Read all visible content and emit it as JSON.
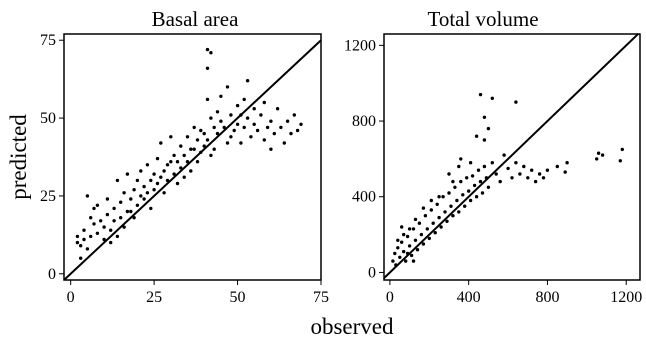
{
  "chart_data": [
    {
      "type": "scatter",
      "title": "Basal area",
      "xlim": [
        -2,
        75
      ],
      "ylim": [
        -2,
        77
      ],
      "x_ticks": [
        0,
        25,
        50,
        75
      ],
      "y_ticks": [
        0,
        25,
        50,
        75
      ],
      "x_tick_labels": [
        "0",
        "25",
        "50",
        "75"
      ],
      "y_tick_labels": [
        "0",
        "25",
        "50",
        "75"
      ],
      "reference_line": "1:1",
      "series": [
        {
          "points": [
            [
              2,
              12
            ],
            [
              2,
              10
            ],
            [
              3,
              9
            ],
            [
              3,
              5
            ],
            [
              4,
              11
            ],
            [
              4,
              14
            ],
            [
              5,
              8
            ],
            [
              5,
              25
            ],
            [
              6,
              12
            ],
            [
              6,
              18
            ],
            [
              7,
              16
            ],
            [
              7,
              21
            ],
            [
              8,
              13
            ],
            [
              8,
              22
            ],
            [
              9,
              17
            ],
            [
              10,
              15
            ],
            [
              10,
              11
            ],
            [
              11,
              19
            ],
            [
              11,
              24
            ],
            [
              12,
              14
            ],
            [
              12,
              10
            ],
            [
              13,
              21
            ],
            [
              13,
              17
            ],
            [
              14,
              30
            ],
            [
              14,
              12
            ],
            [
              15,
              18
            ],
            [
              15,
              23
            ],
            [
              16,
              26
            ],
            [
              16,
              15
            ],
            [
              17,
              20
            ],
            [
              17,
              32
            ],
            [
              18,
              24
            ],
            [
              18,
              20
            ],
            [
              19,
              27
            ],
            [
              19,
              18
            ],
            [
              20,
              22
            ],
            [
              20,
              30
            ],
            [
              21,
              25
            ],
            [
              21,
              33
            ],
            [
              22,
              28
            ],
            [
              22,
              24
            ],
            [
              23,
              35
            ],
            [
              23,
              26
            ],
            [
              24,
              30
            ],
            [
              24,
              21
            ],
            [
              25,
              32
            ],
            [
              25,
              27
            ],
            [
              26,
              37
            ],
            [
              26,
              29
            ],
            [
              27,
              31
            ],
            [
              27,
              42
            ],
            [
              28,
              33
            ],
            [
              28,
              26
            ],
            [
              29,
              35
            ],
            [
              29,
              30
            ],
            [
              30,
              36
            ],
            [
              30,
              44
            ],
            [
              31,
              32
            ],
            [
              31,
              38
            ],
            [
              32,
              36
            ],
            [
              32,
              29
            ],
            [
              33,
              41
            ],
            [
              33,
              34
            ],
            [
              34,
              38
            ],
            [
              34,
              31
            ],
            [
              35,
              44
            ],
            [
              35,
              36
            ],
            [
              36,
              40
            ],
            [
              36,
              33
            ],
            [
              37,
              47
            ],
            [
              37,
              40
            ],
            [
              38,
              43
            ],
            [
              38,
              36
            ],
            [
              39,
              46
            ],
            [
              39,
              39
            ],
            [
              40,
              45
            ],
            [
              40,
              41
            ],
            [
              41,
              56
            ],
            [
              41,
              43
            ],
            [
              41,
              72
            ],
            [
              42,
              50
            ],
            [
              42,
              38
            ],
            [
              43,
              47
            ],
            [
              43,
              40
            ],
            [
              44,
              52
            ],
            [
              44,
              45
            ],
            [
              45,
              49
            ],
            [
              45,
              57
            ],
            [
              46,
              47
            ],
            [
              47,
              42
            ],
            [
              47,
              60
            ],
            [
              48,
              51
            ],
            [
              48,
              44
            ],
            [
              49,
              46
            ],
            [
              50,
              54
            ],
            [
              50,
              48
            ],
            [
              51,
              51
            ],
            [
              51,
              42
            ],
            [
              52,
              56
            ],
            [
              52,
              47
            ],
            [
              53,
              50
            ],
            [
              53,
              62
            ],
            [
              54,
              44
            ],
            [
              55,
              48
            ],
            [
              55,
              53
            ],
            [
              56,
              46
            ],
            [
              57,
              51
            ],
            [
              58,
              43
            ],
            [
              58,
              55
            ],
            [
              59,
              47
            ],
            [
              60,
              49
            ],
            [
              60,
              40
            ],
            [
              61,
              45
            ],
            [
              62,
              53
            ],
            [
              63,
              47
            ],
            [
              64,
              42
            ],
            [
              65,
              49
            ],
            [
              66,
              45
            ],
            [
              67,
              51
            ],
            [
              68,
              46
            ],
            [
              69,
              48
            ],
            [
              42,
              71
            ],
            [
              41,
              66
            ]
          ]
        }
      ]
    },
    {
      "type": "scatter",
      "title": "Total volume",
      "xlim": [
        -30,
        1270
      ],
      "ylim": [
        -40,
        1260
      ],
      "x_ticks": [
        0,
        400,
        800,
        1200
      ],
      "y_ticks": [
        0,
        400,
        800,
        1200
      ],
      "x_tick_labels": [
        "0",
        "400",
        "800",
        "1200"
      ],
      "y_tick_labels": [
        "0",
        "400",
        "800",
        "1200"
      ],
      "reference_line": "1:1",
      "series": [
        {
          "points": [
            [
              15,
              60
            ],
            [
              25,
              100
            ],
            [
              30,
              40
            ],
            [
              40,
              130
            ],
            [
              50,
              80
            ],
            [
              60,
              160
            ],
            [
              70,
              110
            ],
            [
              80,
              60
            ],
            [
              90,
              190
            ],
            [
              100,
              140
            ],
            [
              110,
              90
            ],
            [
              120,
              230
            ],
            [
              130,
              170
            ],
            [
              140,
              120
            ],
            [
              150,
              260
            ],
            [
              160,
              200
            ],
            [
              170,
              150
            ],
            [
              180,
              300
            ],
            [
              190,
              230
            ],
            [
              200,
              180
            ],
            [
              210,
              330
            ],
            [
              220,
              260
            ],
            [
              230,
              210
            ],
            [
              240,
              360
            ],
            [
              250,
              290
            ],
            [
              260,
              240
            ],
            [
              270,
              400
            ],
            [
              280,
              320
            ],
            [
              290,
              270
            ],
            [
              300,
              420
            ],
            [
              310,
              350
            ],
            [
              320,
              300
            ],
            [
              330,
              450
            ],
            [
              340,
              380
            ],
            [
              350,
              320
            ],
            [
              360,
              480
            ],
            [
              370,
              410
            ],
            [
              380,
              350
            ],
            [
              390,
              500
            ],
            [
              400,
              430
            ],
            [
              410,
              380
            ],
            [
              420,
              510
            ],
            [
              430,
              460
            ],
            [
              440,
              400
            ],
            [
              450,
              540
            ],
            [
              460,
              480
            ],
            [
              470,
              420
            ],
            [
              480,
              560
            ],
            [
              490,
              500
            ],
            [
              500,
              450
            ],
            [
              520,
              580
            ],
            [
              540,
              520
            ],
            [
              560,
              480
            ],
            [
              580,
              620
            ],
            [
              600,
              550
            ],
            [
              620,
              500
            ],
            [
              640,
              580
            ],
            [
              660,
              520
            ],
            [
              680,
              560
            ],
            [
              700,
              500
            ],
            [
              720,
              540
            ],
            [
              740,
              480
            ],
            [
              760,
              520
            ],
            [
              780,
              500
            ],
            [
              800,
              540
            ],
            [
              850,
              560
            ],
            [
              890,
              530
            ],
            [
              900,
              580
            ],
            [
              1050,
              600
            ],
            [
              1060,
              630
            ],
            [
              1080,
              620
            ],
            [
              1170,
              590
            ],
            [
              1180,
              650
            ],
            [
              460,
              940
            ],
            [
              520,
              920
            ],
            [
              640,
              900
            ],
            [
              480,
              820
            ],
            [
              500,
              760
            ],
            [
              480,
              700
            ],
            [
              440,
              720
            ],
            [
              410,
              580
            ],
            [
              350,
              560
            ],
            [
              360,
              600
            ],
            [
              300,
              520
            ],
            [
              320,
              480
            ],
            [
              250,
              400
            ],
            [
              210,
              380
            ],
            [
              170,
              340
            ],
            [
              130,
              280
            ],
            [
              100,
              230
            ],
            [
              70,
              200
            ],
            [
              60,
              240
            ],
            [
              90,
              100
            ],
            [
              40,
              170
            ],
            [
              120,
              60
            ]
          ]
        }
      ]
    }
  ],
  "shared_xlabel": "observed",
  "shared_ylabel": "predicted"
}
